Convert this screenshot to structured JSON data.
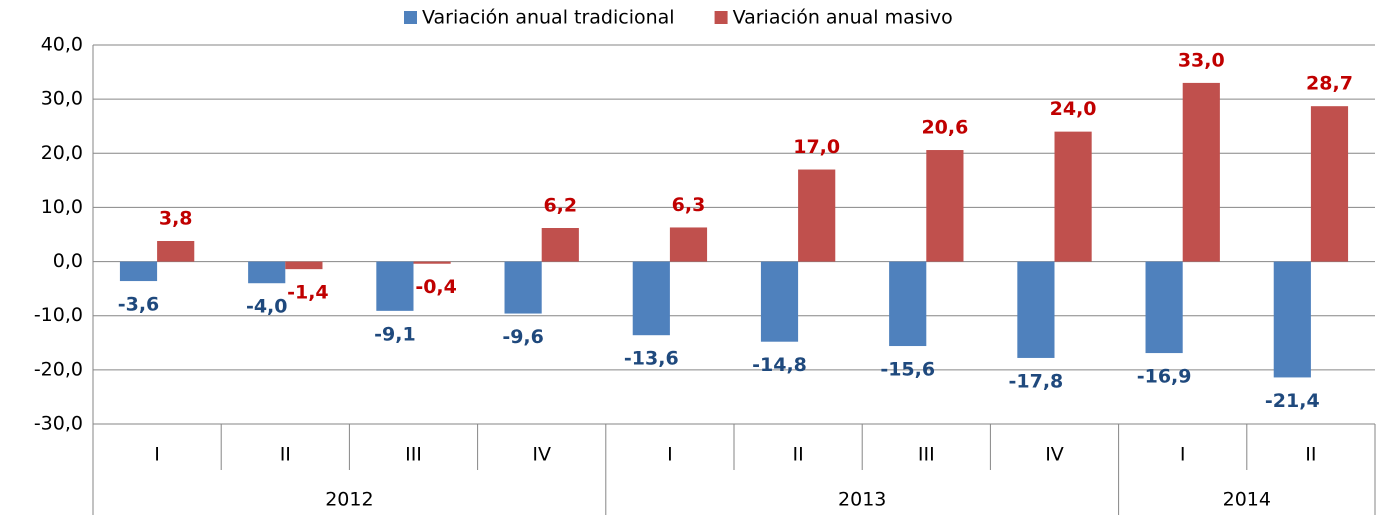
{
  "chart_data": {
    "type": "bar",
    "groups": [
      {
        "label": "2012",
        "categories": [
          "I",
          "II",
          "III",
          "IV"
        ]
      },
      {
        "label": "2013",
        "categories": [
          "I",
          "II",
          "III",
          "IV"
        ]
      },
      {
        "label": "2014",
        "categories": [
          "I",
          "II"
        ]
      }
    ],
    "series": [
      {
        "name": "Variación anual tradicional",
        "color": "#4f81bd",
        "label_color": "#1f497d",
        "values": [
          -3.6,
          -4.0,
          -9.1,
          -9.6,
          -13.6,
          -14.8,
          -15.6,
          -17.8,
          -16.9,
          -21.4
        ],
        "value_labels": [
          "-3,6",
          "-4,0",
          "-9,1",
          "-9,6",
          "-13,6",
          "-14,8",
          "-15,6",
          "-17,8",
          "-16,9",
          "-21,4"
        ]
      },
      {
        "name": "Variación anual masivo",
        "color": "#c0504d",
        "label_color": "#c00000",
        "values": [
          3.8,
          -1.4,
          -0.4,
          6.2,
          6.3,
          17.0,
          20.6,
          24.0,
          33.0,
          28.7
        ],
        "value_labels": [
          "3,8",
          "-1,4",
          "-0,4",
          "6,2",
          "6,3",
          "17,0",
          "20,6",
          "24,0",
          "33,0",
          "28,7"
        ]
      }
    ],
    "ylim": [
      -30,
      40
    ],
    "yticks": [
      {
        "value": -30,
        "label": "-30,0"
      },
      {
        "value": -20,
        "label": "-20,0"
      },
      {
        "value": -10,
        "label": "-10,0"
      },
      {
        "value": 0,
        "label": "0,0"
      },
      {
        "value": 10,
        "label": "10,0"
      },
      {
        "value": 20,
        "label": "20,0"
      },
      {
        "value": 30,
        "label": "30,0"
      },
      {
        "value": 40,
        "label": "40,0"
      }
    ],
    "grid": true,
    "legend": "top"
  }
}
